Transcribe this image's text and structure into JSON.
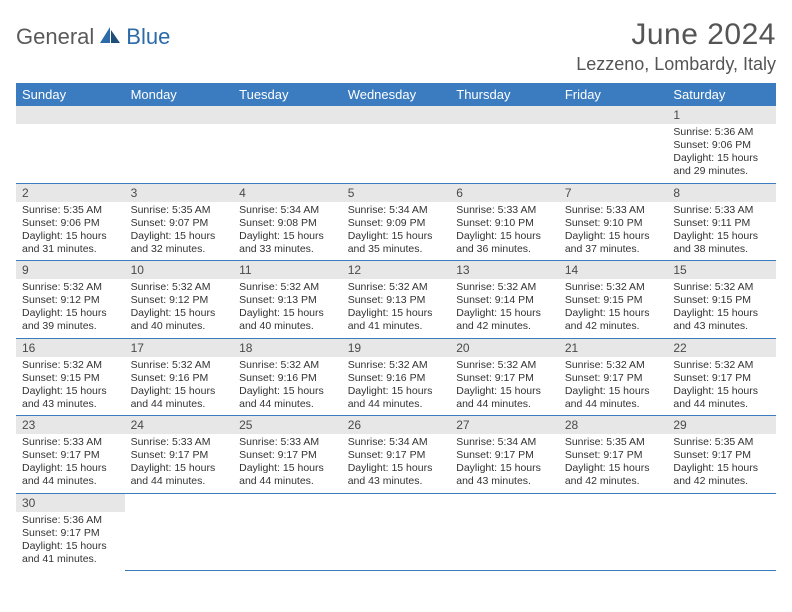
{
  "logo": {
    "part1": "General",
    "part2": "Blue"
  },
  "title": "June 2024",
  "location": "Lezzeno, Lombardy, Italy",
  "colors": {
    "header_bg": "#3b7bbf",
    "header_text": "#ffffff",
    "daynum_bg": "#e7e7e7",
    "border": "#3b7bbf",
    "title_color": "#555555",
    "logo_gray": "#5a5a5a",
    "logo_blue": "#2d6aa9"
  },
  "weekdays": [
    "Sunday",
    "Monday",
    "Tuesday",
    "Wednesday",
    "Thursday",
    "Friday",
    "Saturday"
  ],
  "weeks": [
    [
      null,
      null,
      null,
      null,
      null,
      null,
      {
        "d": "1",
        "sr": "5:36 AM",
        "ss": "9:06 PM",
        "dl": "15 hours and 29 minutes."
      }
    ],
    [
      {
        "d": "2",
        "sr": "5:35 AM",
        "ss": "9:06 PM",
        "dl": "15 hours and 31 minutes."
      },
      {
        "d": "3",
        "sr": "5:35 AM",
        "ss": "9:07 PM",
        "dl": "15 hours and 32 minutes."
      },
      {
        "d": "4",
        "sr": "5:34 AM",
        "ss": "9:08 PM",
        "dl": "15 hours and 33 minutes."
      },
      {
        "d": "5",
        "sr": "5:34 AM",
        "ss": "9:09 PM",
        "dl": "15 hours and 35 minutes."
      },
      {
        "d": "6",
        "sr": "5:33 AM",
        "ss": "9:10 PM",
        "dl": "15 hours and 36 minutes."
      },
      {
        "d": "7",
        "sr": "5:33 AM",
        "ss": "9:10 PM",
        "dl": "15 hours and 37 minutes."
      },
      {
        "d": "8",
        "sr": "5:33 AM",
        "ss": "9:11 PM",
        "dl": "15 hours and 38 minutes."
      }
    ],
    [
      {
        "d": "9",
        "sr": "5:32 AM",
        "ss": "9:12 PM",
        "dl": "15 hours and 39 minutes."
      },
      {
        "d": "10",
        "sr": "5:32 AM",
        "ss": "9:12 PM",
        "dl": "15 hours and 40 minutes."
      },
      {
        "d": "11",
        "sr": "5:32 AM",
        "ss": "9:13 PM",
        "dl": "15 hours and 40 minutes."
      },
      {
        "d": "12",
        "sr": "5:32 AM",
        "ss": "9:13 PM",
        "dl": "15 hours and 41 minutes."
      },
      {
        "d": "13",
        "sr": "5:32 AM",
        "ss": "9:14 PM",
        "dl": "15 hours and 42 minutes."
      },
      {
        "d": "14",
        "sr": "5:32 AM",
        "ss": "9:15 PM",
        "dl": "15 hours and 42 minutes."
      },
      {
        "d": "15",
        "sr": "5:32 AM",
        "ss": "9:15 PM",
        "dl": "15 hours and 43 minutes."
      }
    ],
    [
      {
        "d": "16",
        "sr": "5:32 AM",
        "ss": "9:15 PM",
        "dl": "15 hours and 43 minutes."
      },
      {
        "d": "17",
        "sr": "5:32 AM",
        "ss": "9:16 PM",
        "dl": "15 hours and 44 minutes."
      },
      {
        "d": "18",
        "sr": "5:32 AM",
        "ss": "9:16 PM",
        "dl": "15 hours and 44 minutes."
      },
      {
        "d": "19",
        "sr": "5:32 AM",
        "ss": "9:16 PM",
        "dl": "15 hours and 44 minutes."
      },
      {
        "d": "20",
        "sr": "5:32 AM",
        "ss": "9:17 PM",
        "dl": "15 hours and 44 minutes."
      },
      {
        "d": "21",
        "sr": "5:32 AM",
        "ss": "9:17 PM",
        "dl": "15 hours and 44 minutes."
      },
      {
        "d": "22",
        "sr": "5:32 AM",
        "ss": "9:17 PM",
        "dl": "15 hours and 44 minutes."
      }
    ],
    [
      {
        "d": "23",
        "sr": "5:33 AM",
        "ss": "9:17 PM",
        "dl": "15 hours and 44 minutes."
      },
      {
        "d": "24",
        "sr": "5:33 AM",
        "ss": "9:17 PM",
        "dl": "15 hours and 44 minutes."
      },
      {
        "d": "25",
        "sr": "5:33 AM",
        "ss": "9:17 PM",
        "dl": "15 hours and 44 minutes."
      },
      {
        "d": "26",
        "sr": "5:34 AM",
        "ss": "9:17 PM",
        "dl": "15 hours and 43 minutes."
      },
      {
        "d": "27",
        "sr": "5:34 AM",
        "ss": "9:17 PM",
        "dl": "15 hours and 43 minutes."
      },
      {
        "d": "28",
        "sr": "5:35 AM",
        "ss": "9:17 PM",
        "dl": "15 hours and 42 minutes."
      },
      {
        "d": "29",
        "sr": "5:35 AM",
        "ss": "9:17 PM",
        "dl": "15 hours and 42 minutes."
      }
    ],
    [
      {
        "d": "30",
        "sr": "5:36 AM",
        "ss": "9:17 PM",
        "dl": "15 hours and 41 minutes."
      },
      null,
      null,
      null,
      null,
      null,
      null
    ]
  ],
  "labels": {
    "sunrise": "Sunrise: ",
    "sunset": "Sunset: ",
    "daylight": "Daylight: "
  }
}
